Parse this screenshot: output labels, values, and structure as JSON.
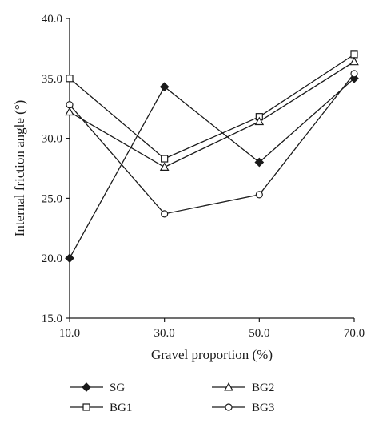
{
  "chart_data": {
    "type": "line",
    "title": "",
    "xlabel": "Gravel proportion (%)",
    "ylabel": "Internal friction angle (°)",
    "x": [
      10,
      30,
      50,
      70
    ],
    "x_tick_labels": [
      "10.0",
      "30.0",
      "50.0",
      "70.0"
    ],
    "xlim": [
      10,
      70
    ],
    "ylim": [
      15,
      40
    ],
    "y_ticks": [
      15,
      20,
      25,
      30,
      35,
      40
    ],
    "y_tick_labels": [
      "15.0",
      "20.0",
      "25.0",
      "30.0",
      "35.0",
      "40.0"
    ],
    "grid": false,
    "legend_position": "bottom",
    "series": [
      {
        "name": "SG",
        "marker": "filled-diamond",
        "values": [
          20.0,
          34.3,
          28.0,
          35.0
        ]
      },
      {
        "name": "BG1",
        "marker": "open-square",
        "values": [
          35.0,
          28.3,
          31.8,
          37.0
        ]
      },
      {
        "name": "BG2",
        "marker": "open-triangle",
        "values": [
          32.2,
          27.6,
          31.4,
          36.4
        ]
      },
      {
        "name": "BG3",
        "marker": "open-circle",
        "values": [
          32.8,
          23.7,
          25.3,
          35.4
        ]
      }
    ],
    "legend_order": [
      "SG",
      "BG2",
      "BG1",
      "BG3"
    ],
    "colors": {
      "line": "#1a1a1a",
      "marker_fill": "#ffffff",
      "background": "#ffffff"
    }
  }
}
